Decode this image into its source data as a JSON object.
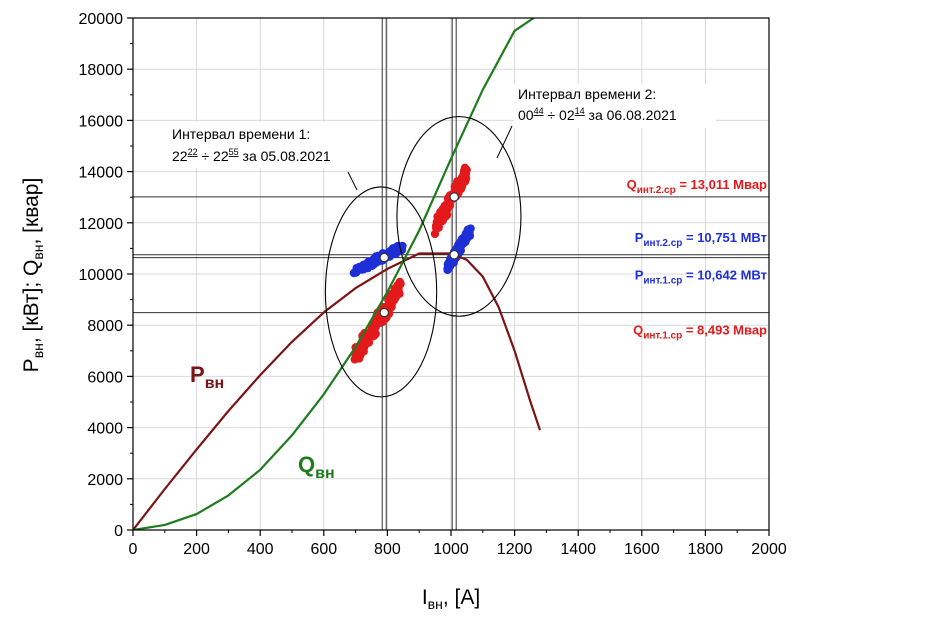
{
  "chart_data": {
    "type": "line",
    "xlabel": {
      "main": "I",
      "sub": "вн",
      "rest": ", [A]"
    },
    "ylabel": {
      "p1": "P",
      "s1": "вн",
      "p2": ", [кВт]; Q",
      "s2": "вн",
      "p3": ", [квар]"
    },
    "xlim": [
      0,
      2000
    ],
    "ylim": [
      0,
      20000
    ],
    "x_ticks": [
      0,
      200,
      400,
      600,
      800,
      1000,
      1200,
      1400,
      1600,
      1800,
      2000
    ],
    "y_ticks": [
      0,
      2000,
      4000,
      6000,
      8000,
      10000,
      12000,
      14000,
      16000,
      18000,
      20000
    ],
    "x_tick_labels": [
      "0",
      "200",
      "400",
      "600",
      "800",
      "1000",
      "1200",
      "1400",
      "1600",
      "1800",
      "2000"
    ],
    "y_tick_labels": [
      "0",
      "2000",
      "4000",
      "6000",
      "8000",
      "10000",
      "12000",
      "14000",
      "16000",
      "18000",
      "20000"
    ],
    "grid": true,
    "series": [
      {
        "name": "P",
        "name_sub": "вн",
        "color": "#7b1416",
        "x": [
          0,
          100,
          200,
          300,
          400,
          500,
          600,
          700,
          800,
          900,
          1000,
          1050,
          1100,
          1150,
          1200,
          1250,
          1280
        ],
        "y": [
          0,
          1600,
          3150,
          4650,
          6050,
          7350,
          8500,
          9450,
          10200,
          10800,
          10800,
          10550,
          9900,
          8700,
          7000,
          5000,
          3900
        ]
      },
      {
        "name": "Q",
        "name_sub": "вн",
        "color": "#1e7b1e",
        "x": [
          0,
          100,
          200,
          300,
          400,
          500,
          600,
          700,
          800,
          900,
          1000,
          1100,
          1200,
          1260
        ],
        "y": [
          0,
          200,
          620,
          1350,
          2350,
          3700,
          5300,
          7150,
          9300,
          11700,
          14500,
          17200,
          19500,
          20000
        ]
      }
    ],
    "scatter_clusters": [
      {
        "color": "#e31a1c",
        "x_range": [
          700,
          840
        ],
        "y_range": [
          6800,
          9400
        ]
      },
      {
        "color": "#e31a1c",
        "x_range": [
          950,
          1050
        ],
        "y_range": [
          11800,
          14000
        ]
      },
      {
        "color": "#1f2fd6",
        "x_range": [
          700,
          850
        ],
        "y_range": [
          10100,
          11100
        ]
      },
      {
        "color": "#1f2fd6",
        "x_range": [
          990,
          1060
        ],
        "y_range": [
          10300,
          11700
        ]
      }
    ],
    "mean_points": [
      {
        "x": 790,
        "y": 8493
      },
      {
        "x": 790,
        "y": 10642
      },
      {
        "x": 1010,
        "y": 10751
      },
      {
        "x": 1010,
        "y": 13011
      }
    ],
    "ellipses": [
      {
        "cx": 780,
        "cy": 9300,
        "rx": 175,
        "ry": 4100
      },
      {
        "cx": 1025,
        "cy": 12250,
        "rx": 195,
        "ry": 3900
      }
    ],
    "vlines": [
      790,
      1010
    ],
    "hlines": [
      {
        "y": 13011,
        "label_main": "Q",
        "label_sub": "инт.2.ср",
        "label_rest": " = 13,011 Мвар",
        "color": "#e31a1c"
      },
      {
        "y": 10751,
        "label_main": "P",
        "label_sub": "инт.2.ср",
        "label_rest": " = 10,751 МВт",
        "color": "#1f2fd6"
      },
      {
        "y": 10642,
        "label_main": "P",
        "label_sub": "инт.1.ср",
        "label_rest": " = 10,642 МВт",
        "color": "#1f2fd6"
      },
      {
        "y": 8493,
        "label_main": "Q",
        "label_sub": "инт.1.ср",
        "label_rest": " = 8,493 Мвар",
        "color": "#e31a1c"
      }
    ],
    "annotations": [
      {
        "line1": "Интервал времени 1:",
        "line2": {
          "a": "22",
          "a_sup": "22",
          "mid": " ÷ 22",
          "b_sup": "55",
          "end": " за 05.08.2021"
        }
      },
      {
        "line1": "Интервал времени 2:",
        "line2": {
          "a": "00",
          "a_sup": "44",
          "mid": " ÷ 02",
          "b_sup": "14",
          "end": " за 06.08.2021"
        }
      }
    ]
  }
}
